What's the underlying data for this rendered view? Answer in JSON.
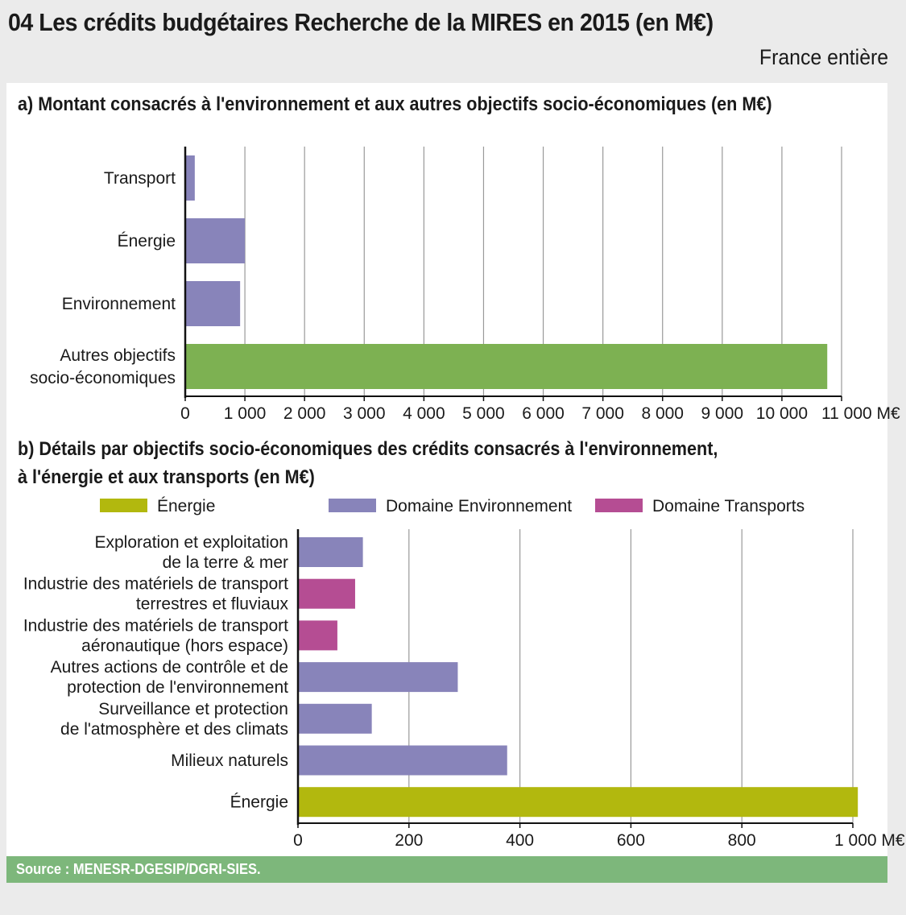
{
  "header": {
    "title": "04   Les crédits budgétaires Recherche de la MIRES en 2015 (en M€)",
    "subtitle": "France entière"
  },
  "source": "Source : MENESR-DGESIP/DGRI-SIES.",
  "chart_data": [
    {
      "type": "bar",
      "orientation": "horizontal",
      "title": "a) Montant consacrés à l'environnement et aux autres objectifs socio-économiques (en M€)",
      "categories": [
        [
          "Transport"
        ],
        [
          "Énergie"
        ],
        [
          "Environnement"
        ],
        [
          "Autres objectifs",
          "socio-économiques"
        ]
      ],
      "values": [
        160,
        1000,
        920,
        10760
      ],
      "colors": [
        "#8884ba",
        "#8884ba",
        "#8884ba",
        "#7db152"
      ],
      "xlim": [
        0,
        11000
      ],
      "ticks": [
        0,
        1000,
        2000,
        3000,
        4000,
        5000,
        6000,
        7000,
        8000,
        9000,
        10000,
        11000
      ],
      "tick_labels": [
        "0",
        "1 000",
        "2 000",
        "3 000",
        "4 000",
        "5 000",
        "6 000",
        "7 000",
        "8 000",
        "9 000",
        "10 000",
        "11 000 M€"
      ],
      "grid": true
    },
    {
      "type": "bar",
      "orientation": "horizontal",
      "title_line1": "b) Détails par objectifs socio-économiques des crédits consacrés à l'environnement,",
      "title_line2": "à l'énergie et aux transports  (en M€)",
      "legend": [
        {
          "label": "Énergie",
          "color": "#b2b80e"
        },
        {
          "label": "Domaine Environnement",
          "color": "#8884ba"
        },
        {
          "label": "Domaine Transports",
          "color": "#b54d93"
        }
      ],
      "legend_position": "top",
      "categories": [
        [
          "Exploration et exploitation",
          "de la terre & mer"
        ],
        [
          "Industrie des matériels de transport",
          "terrestres et fluviaux"
        ],
        [
          "Industrie des matériels de transport",
          "aéronautique (hors espace)"
        ],
        [
          "Autres actions de contrôle et de",
          "protection de l'environnement"
        ],
        [
          "Surveillance et protection",
          "de l'atmosphère et des climats"
        ],
        [
          "Milieux naturels"
        ],
        [
          "Énergie"
        ]
      ],
      "values": [
        117,
        103,
        71,
        288,
        133,
        377,
        1009
      ],
      "groups": [
        1,
        2,
        2,
        1,
        1,
        1,
        0
      ],
      "xlim": [
        0,
        1000
      ],
      "ticks": [
        0,
        200,
        400,
        600,
        800,
        1000
      ],
      "tick_labels": [
        "0",
        "200",
        "400",
        "600",
        "800",
        "1 000 M€"
      ],
      "grid": true
    }
  ]
}
